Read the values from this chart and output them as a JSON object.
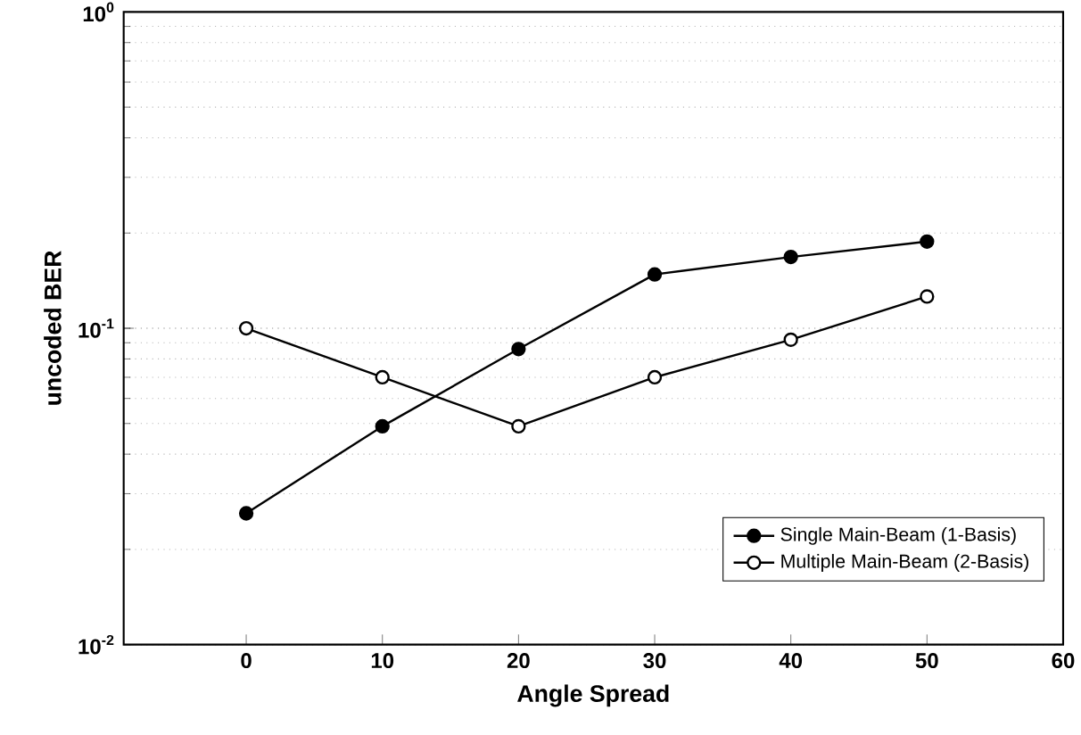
{
  "chart_data": {
    "type": "line",
    "xlabel": "Angle Spread",
    "ylabel": "uncoded BER",
    "x": [
      0,
      10,
      20,
      30,
      40,
      50
    ],
    "series": [
      {
        "name": "Single Main-Beam (1-Basis)",
        "color": "#000000",
        "marker": "circle",
        "values": [
          0.026,
          0.049,
          0.086,
          0.148,
          0.168,
          0.188
        ]
      },
      {
        "name": "Multiple Main-Beam (2-Basis)",
        "color": "#000000",
        "marker": "circle",
        "values": [
          0.1,
          0.07,
          0.049,
          0.07,
          0.092,
          0.126
        ]
      }
    ],
    "log": "y",
    "xlim": [
      -9,
      60
    ],
    "ylim": [
      0.01,
      1
    ],
    "xticks": [
      0,
      10,
      20,
      30,
      40,
      50,
      60
    ],
    "yticks": [
      {
        "value": 0.01,
        "label": "10$^{-2}$"
      },
      {
        "value": 0.1,
        "label": "10$^{-1}$"
      },
      {
        "value": 1,
        "label": "10$^{0}$"
      }
    ],
    "grid": "y",
    "legend": "bottom right",
    "line_style": "solid"
  }
}
